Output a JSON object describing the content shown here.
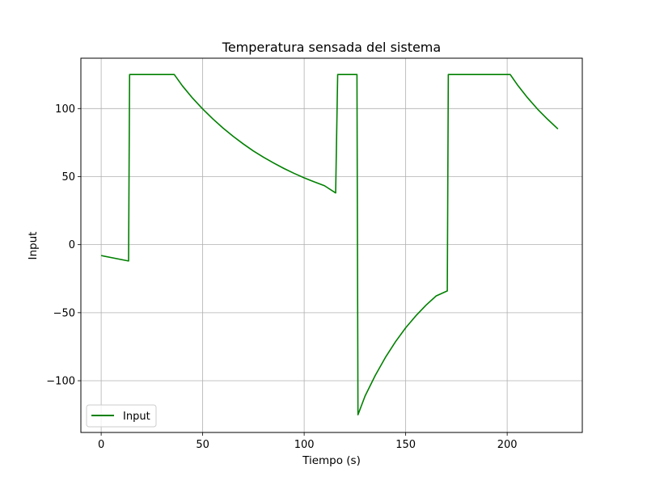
{
  "chart_data": {
    "type": "line",
    "title": "Temperatura sensada del sistema",
    "xlabel": "Tiempo (s)",
    "ylabel": "Input",
    "xlim": [
      -10,
      237
    ],
    "ylim": [
      -138,
      137
    ],
    "xticks": [
      0,
      50,
      100,
      150,
      200
    ],
    "yticks": [
      -100,
      -50,
      0,
      50,
      100
    ],
    "ytick_labels": [
      "−100",
      "−50",
      "0",
      "50",
      "100"
    ],
    "grid": true,
    "legend_position": "lower-left",
    "series": [
      {
        "name": "Input",
        "color": "#008000",
        "x": [
          0,
          13.5,
          14,
          36,
          40,
          45,
          50,
          55,
          60,
          65,
          70,
          75,
          80,
          85,
          90,
          95,
          100,
          105,
          110,
          115.5,
          116.5,
          126,
          126.5,
          130,
          135,
          140,
          145,
          150,
          155,
          160,
          165,
          170.5,
          171,
          201.5,
          205,
          210,
          215,
          220,
          225
        ],
        "y": [
          -8,
          -12,
          125,
          125,
          116.7,
          107.7,
          99.7,
          92.4,
          85.7,
          79.6,
          74.0,
          68.8,
          64.2,
          60.0,
          56.0,
          52.4,
          49.1,
          46.1,
          43.3,
          38,
          125,
          125,
          -125,
          -111.2,
          -96.1,
          -82.9,
          -71.3,
          -61.1,
          -52.3,
          -44.5,
          -37.7,
          -34,
          125,
          125,
          117.5,
          108.0,
          99.5,
          92.0,
          85
        ]
      }
    ]
  }
}
